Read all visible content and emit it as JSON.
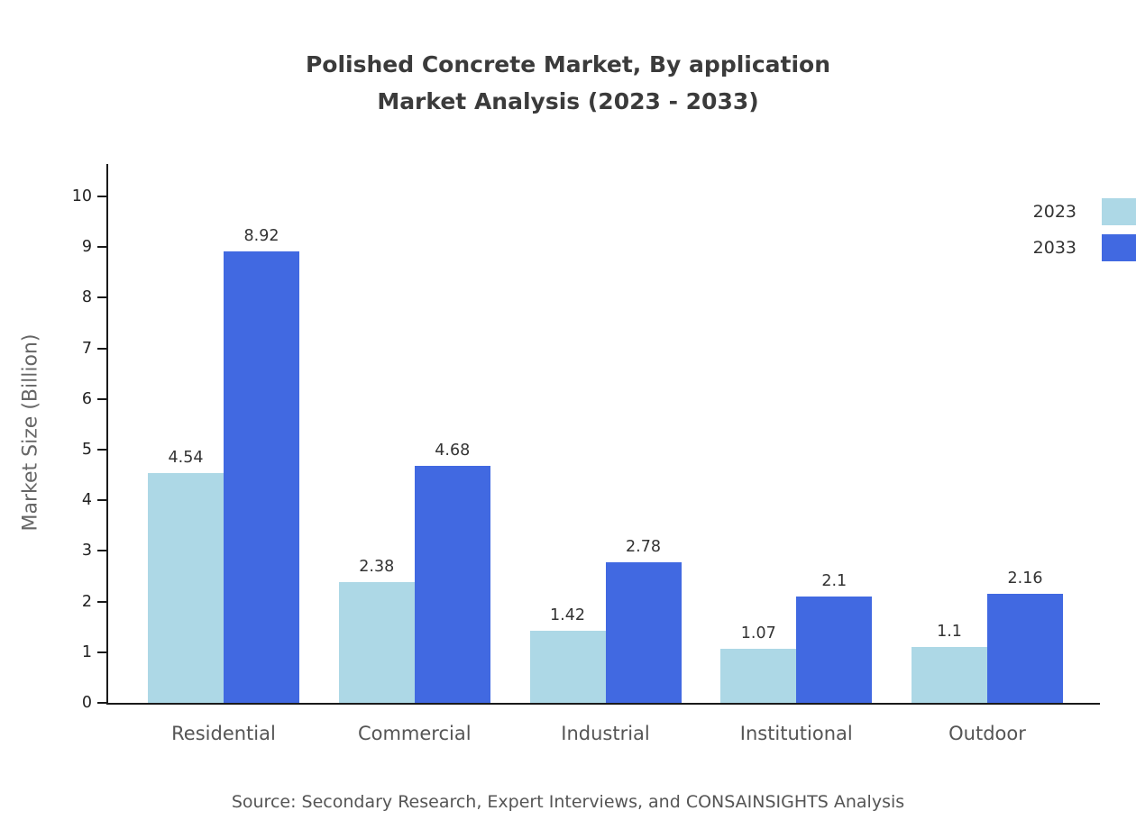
{
  "title": {
    "line1": "Polished Concrete Market, By application",
    "line2": "Market Analysis (2023 - 2033)"
  },
  "source": "Source: Secondary Research, Expert Interviews, and CONSAINSIGHTS Analysis",
  "colors": {
    "series_2023": "#add8e6",
    "series_2033": "#4169e1",
    "axis": "#1a1a1a",
    "title_text": "#3b3b3b",
    "muted_text": "#555555"
  },
  "legend": {
    "items": [
      {
        "label": "2023",
        "color": "#add8e6"
      },
      {
        "label": "2033",
        "color": "#4169e1"
      }
    ]
  },
  "chart_data": {
    "type": "bar",
    "title": "Polished Concrete Market, By application Market Analysis (2023 - 2033)",
    "categories": [
      "Residential",
      "Commercial",
      "Industrial",
      "Institutional",
      "Outdoor"
    ],
    "series": [
      {
        "name": "2023",
        "color": "#add8e6",
        "values": [
          4.54,
          2.38,
          1.42,
          1.07,
          1.1
        ]
      },
      {
        "name": "2033",
        "color": "#4169e1",
        "values": [
          8.92,
          4.68,
          2.78,
          2.1,
          2.16
        ]
      }
    ],
    "xlabel": "",
    "ylabel": "Market Size (Billion)",
    "ylim": [
      0,
      10
    ],
    "yticks": [
      0,
      1,
      2,
      3,
      4,
      5,
      6,
      7,
      8,
      9,
      10
    ],
    "grid": false,
    "legend_position": "top-right",
    "value_labels": true
  }
}
